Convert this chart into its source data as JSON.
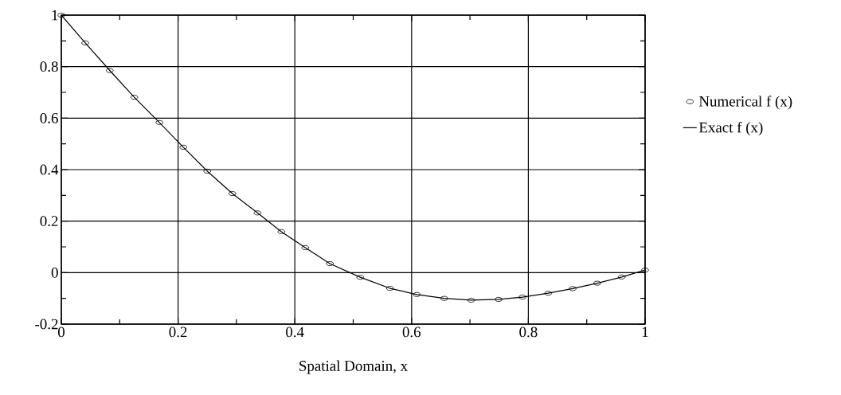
{
  "chart_data": {
    "type": "line",
    "xlabel": "Spatial Domain, x",
    "series": [
      {
        "name": "Numerical f (x)",
        "type": "scatter",
        "marker": "circle",
        "color": "#000000",
        "x": [
          0,
          0.041,
          0.083,
          0.125,
          0.168,
          0.209,
          0.25,
          0.293,
          0.336,
          0.377,
          0.418,
          0.46,
          0.512,
          0.563,
          0.609,
          0.656,
          0.702,
          0.749,
          0.79,
          0.834,
          0.876,
          0.918,
          0.96,
          1.0
        ],
        "values": [
          1.0,
          0.892,
          0.785,
          0.681,
          0.583,
          0.487,
          0.394,
          0.307,
          0.232,
          0.159,
          0.097,
          0.035,
          -0.018,
          -0.061,
          -0.085,
          -0.1,
          -0.107,
          -0.104,
          -0.095,
          -0.08,
          -0.062,
          -0.041,
          -0.017,
          0.01
        ]
      },
      {
        "name": "Exact f (x)",
        "type": "line",
        "marker": "none",
        "line_style": "solid",
        "color": "#000000",
        "x": [
          0,
          0.041,
          0.083,
          0.125,
          0.168,
          0.209,
          0.25,
          0.293,
          0.336,
          0.377,
          0.418,
          0.46,
          0.512,
          0.563,
          0.609,
          0.656,
          0.702,
          0.749,
          0.79,
          0.834,
          0.876,
          0.918,
          0.96,
          1.0
        ],
        "values": [
          1.0,
          0.892,
          0.785,
          0.681,
          0.583,
          0.487,
          0.394,
          0.307,
          0.232,
          0.159,
          0.097,
          0.035,
          -0.018,
          -0.061,
          -0.085,
          -0.1,
          -0.107,
          -0.104,
          -0.095,
          -0.08,
          -0.062,
          -0.041,
          -0.017,
          0.01
        ]
      }
    ],
    "xlim": [
      0,
      1
    ],
    "ylim": [
      -0.2,
      1
    ],
    "xticks": [
      0,
      {
        "value": 0.1,
        "label": null
      },
      0.2,
      {
        "value": 0.3,
        "label": null
      },
      0.4,
      {
        "value": 0.5,
        "label": null
      },
      0.6,
      {
        "value": 0.7,
        "label": null
      },
      0.8,
      {
        "value": 0.9,
        "label": null
      },
      1
    ],
    "yticks": [
      -0.2,
      {
        "value": -0.1,
        "label": null
      },
      0,
      {
        "value": 0.1,
        "label": null
      },
      0.2,
      {
        "value": 0.3,
        "label": null
      },
      0.4,
      {
        "value": 0.5,
        "label": null
      },
      0.6,
      {
        "value": 0.7,
        "label": null
      },
      0.8,
      {
        "value": 0.9,
        "label": null
      },
      1
    ],
    "grid": true,
    "legend": "right"
  }
}
